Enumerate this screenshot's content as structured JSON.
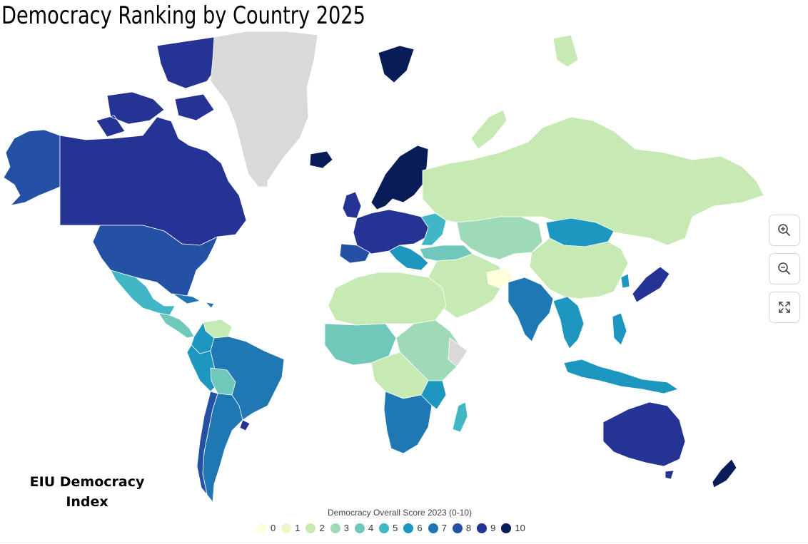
{
  "title": "Democracy Ranking by Country 2025",
  "overlay_label": "EIU Democracy Index",
  "legend": {
    "title": "Democracy Overall Score 2023 (0-10)",
    "items": [
      {
        "label": "0",
        "color": "#ffffd9"
      },
      {
        "label": "1",
        "color": "#eef8c6"
      },
      {
        "label": "2",
        "color": "#c7e9b4"
      },
      {
        "label": "3",
        "color": "#9fdab8"
      },
      {
        "label": "4",
        "color": "#70c8bb"
      },
      {
        "label": "5",
        "color": "#41b6c4"
      },
      {
        "label": "6",
        "color": "#1e97c0"
      },
      {
        "label": "7",
        "color": "#1f77b4"
      },
      {
        "label": "8",
        "color": "#2451a3"
      },
      {
        "label": "9",
        "color": "#253494"
      },
      {
        "label": "10",
        "color": "#081d58"
      }
    ]
  },
  "no_data_color": "#d9d9d9",
  "controls": [
    {
      "name": "zoom-in",
      "icon": "zoom-in-icon"
    },
    {
      "name": "zoom-out",
      "icon": "zoom-out-icon"
    },
    {
      "name": "fullscreen",
      "icon": "fullscreen-icon"
    }
  ]
}
